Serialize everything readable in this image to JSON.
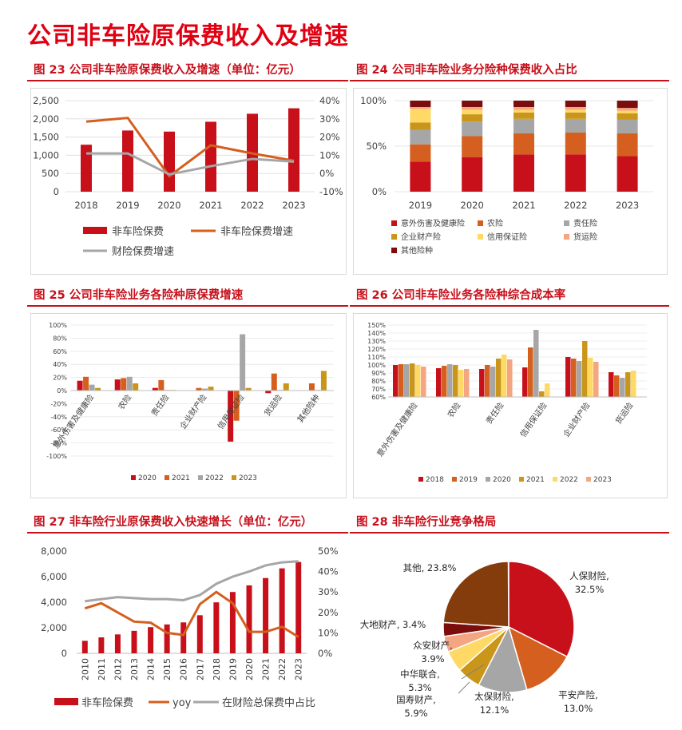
{
  "page_title": "公司非车险原保费收入及增速",
  "chart_data": [
    {
      "id": "fig23",
      "type": "bar",
      "title": "图 23 公司非车险原保费收入及增速（单位：亿元）",
      "categories": [
        "2018",
        "2019",
        "2020",
        "2021",
        "2022",
        "2023"
      ],
      "y_ticks": [
        "2,500",
        "2,000",
        "1,500",
        "1,000",
        "500",
        "0"
      ],
      "y2_ticks": [
        "40%",
        "30%",
        "20%",
        "10%",
        "0%",
        "-10%"
      ],
      "ylim": [
        0,
        2500
      ],
      "y2lim": [
        -10,
        40
      ],
      "bar_series": {
        "name": "非车险保费",
        "color": "#c8101b",
        "values": [
          1290,
          1680,
          1650,
          1920,
          2140,
          2290
        ]
      },
      "line_series": [
        {
          "name": "非车险保费增速",
          "color": "#d45f1e",
          "values": [
            28.5,
            30.5,
            -1.5,
            15.5,
            11,
            7
          ]
        },
        {
          "name": "财险保费增速",
          "color": "#a6a6a6",
          "values": [
            11,
            11,
            -0.5,
            4,
            8,
            6.5
          ]
        }
      ],
      "legend": [
        "非车险保费",
        "非车险保费增速",
        "财险保费增速"
      ],
      "legend_position": "bottom"
    },
    {
      "id": "fig24",
      "type": "bar",
      "title": "图 24 公司非车险业务分险种保费收入占比",
      "stacked": true,
      "categories": [
        "2019",
        "2020",
        "2021",
        "2022",
        "2023"
      ],
      "y_ticks": [
        "100%",
        "50%",
        "0%"
      ],
      "ylim": [
        0,
        100
      ],
      "series": [
        {
          "name": "意外伤害及健康险",
          "color": "#c8101b",
          "values": [
            33,
            38,
            41,
            41,
            39
          ]
        },
        {
          "name": "农险",
          "color": "#d45f1e",
          "values": [
            19,
            23,
            23,
            24,
            25
          ]
        },
        {
          "name": "责任险",
          "color": "#a6a6a6",
          "values": [
            16,
            16,
            16,
            15,
            15
          ]
        },
        {
          "name": "企业财产险",
          "color": "#c9961a",
          "values": [
            8,
            8,
            7,
            7,
            7
          ]
        },
        {
          "name": "信用保证险",
          "color": "#ffd966",
          "values": [
            15,
            5,
            3,
            3,
            3
          ]
        },
        {
          "name": "货运险",
          "color": "#f4a582",
          "values": [
            2,
            3,
            3,
            3,
            3
          ]
        },
        {
          "name": "其他险种",
          "color": "#7b0d0d",
          "values": [
            7,
            7,
            7,
            7,
            8
          ]
        }
      ],
      "legend_position": "bottom"
    },
    {
      "id": "fig25",
      "type": "bar",
      "title": "图 25 公司非车险业务各险种原保费增速",
      "categories": [
        "意外伤害及健康险",
        "农险",
        "责任险",
        "企业财产险",
        "信用保证险",
        "货运险",
        "其他险种"
      ],
      "y_ticks": [
        "100%",
        "80%",
        "60%",
        "40%",
        "20%",
        "0%",
        "-20%",
        "-40%",
        "-60%",
        "-80%",
        "-100%"
      ],
      "ylim": [
        -100,
        100
      ],
      "series": [
        {
          "name": "2020",
          "color": "#c8101b",
          "values": [
            15,
            17,
            4,
            0,
            -78,
            -4,
            0
          ]
        },
        {
          "name": "2021",
          "color": "#d45f1e",
          "values": [
            21,
            19,
            16,
            4,
            -46,
            26,
            11
          ]
        },
        {
          "name": "2022",
          "color": "#a6a6a6",
          "values": [
            9,
            21,
            1,
            3,
            86,
            1,
            1
          ]
        },
        {
          "name": "2023",
          "color": "#c9961a",
          "values": [
            4,
            11,
            1,
            6,
            4,
            11,
            30
          ]
        }
      ],
      "legend_position": "bottom"
    },
    {
      "id": "fig26",
      "type": "bar",
      "title": "图 26 公司非车险业务各险种综合成本率",
      "categories": [
        "意外伤害及健康险",
        "农险",
        "责任险",
        "信用保证险",
        "企业财产险",
        "货运险"
      ],
      "y_ticks": [
        "150%",
        "140%",
        "130%",
        "120%",
        "110%",
        "100%",
        "90%",
        "80%",
        "70%",
        "60%"
      ],
      "ylim": [
        60,
        150
      ],
      "series": [
        {
          "name": "2018",
          "color": "#c8101b",
          "values": [
            100,
            96,
            95,
            97,
            110,
            91
          ]
        },
        {
          "name": "2019",
          "color": "#d45f1e",
          "values": [
            101,
            99,
            100,
            122,
            108,
            87
          ]
        },
        {
          "name": "2020",
          "color": "#a6a6a6",
          "values": [
            101,
            101,
            98,
            144,
            105,
            84
          ]
        },
        {
          "name": "2021",
          "color": "#c9961a",
          "values": [
            102,
            100,
            108,
            67,
            130,
            91
          ]
        },
        {
          "name": "2022",
          "color": "#ffd966",
          "values": [
            100,
            94,
            113,
            77,
            109,
            93
          ]
        },
        {
          "name": "2023",
          "color": "#f4a582",
          "values": [
            98,
            95,
            107,
            60,
            104,
            60
          ]
        }
      ],
      "legend_position": "bottom"
    },
    {
      "id": "fig27",
      "type": "bar",
      "title": "图 27 非车险行业原保费收入快速增长（单位：亿元）",
      "categories": [
        "2010",
        "2011",
        "2012",
        "2013",
        "2014",
        "2015",
        "2016",
        "2017",
        "2018",
        "2019",
        "2020",
        "2021",
        "2022",
        "2023"
      ],
      "y_ticks": [
        "8,000",
        "6,000",
        "4,000",
        "2,000",
        "0"
      ],
      "y2_ticks": [
        "50%",
        "40%",
        "30%",
        "20%",
        "10%",
        "0%"
      ],
      "ylim": [
        0,
        8000
      ],
      "y2lim": [
        0,
        50
      ],
      "bar_series": {
        "name": "非车险保费",
        "color": "#c8101b",
        "values": [
          980,
          1250,
          1480,
          1760,
          2050,
          2260,
          2420,
          2980,
          3990,
          4800,
          5320,
          5890,
          6650,
          7150
        ]
      },
      "line_series": [
        {
          "name": "yoy",
          "color": "#d45f1e",
          "values": [
            22,
            24.5,
            20,
            15.5,
            15,
            10,
            9,
            24,
            30,
            24.5,
            10.5,
            10.5,
            13,
            8
          ]
        },
        {
          "name": "在财险总保费中占比",
          "color": "#a6a6a6",
          "values": [
            25.5,
            26.5,
            27.5,
            27,
            26.5,
            26.5,
            26,
            28.5,
            34,
            37.5,
            40,
            43,
            44.5,
            45
          ]
        }
      ],
      "legend": [
        "非车险保费",
        "yoy",
        "在财险总保费中占比"
      ],
      "legend_position": "bottom"
    },
    {
      "id": "fig28",
      "type": "pie",
      "title": "图 28 非车险行业竞争格局",
      "slices": [
        {
          "label": "人保财险,",
          "pct": 32.5,
          "pct_text": "32.5%",
          "color": "#c8101b"
        },
        {
          "label": "平安产险,",
          "pct": 13.0,
          "pct_text": "13.0%",
          "color": "#d45f1e"
        },
        {
          "label": "太保财险,",
          "pct": 12.1,
          "pct_text": "12.1%",
          "color": "#a6a6a6"
        },
        {
          "label": "国寿财产,",
          "pct": 5.9,
          "pct_text": "5.9%",
          "color": "#c9961a"
        },
        {
          "label": "中华联合,",
          "pct": 5.3,
          "pct_text": "5.3%",
          "color": "#ffd966"
        },
        {
          "label": "众安财产,",
          "pct": 3.9,
          "pct_text": "3.9%",
          "color": "#f4a582"
        },
        {
          "label": "大地财产,",
          "pct": 3.4,
          "pct_text": "3.4%",
          "color": "#7b0d0d"
        },
        {
          "label": "其他,",
          "pct": 23.8,
          "pct_text": "23.8%",
          "color": "#843c0c"
        }
      ]
    }
  ]
}
